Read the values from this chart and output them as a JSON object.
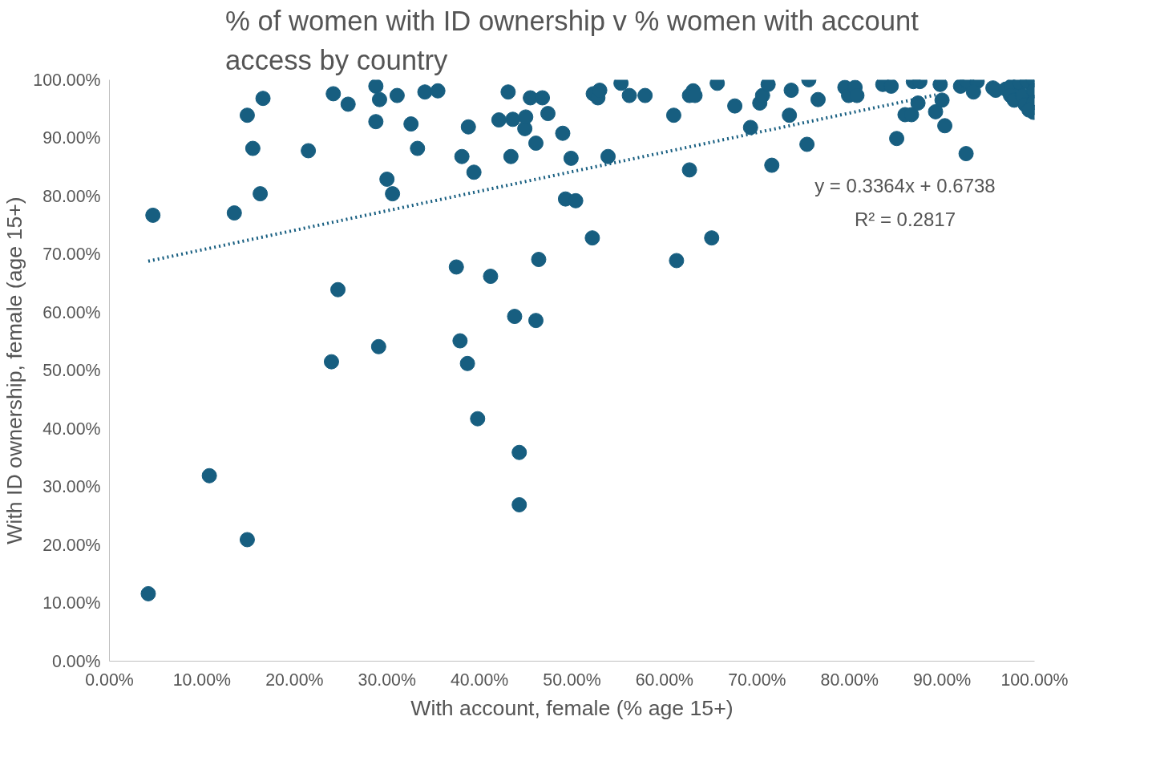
{
  "chart_data": {
    "type": "scatter",
    "title": "% of women with ID ownership v % women with account access by country",
    "xlabel": "With account, female (% age 15+)",
    "ylabel": "With ID ownership, female (age 15+)",
    "xlim": [
      0,
      1
    ],
    "ylim": [
      0,
      1
    ],
    "xticks": [
      {
        "value": 0,
        "label": "0.00%"
      },
      {
        "value": 0.1,
        "label": "10.00%"
      },
      {
        "value": 0.2,
        "label": "20.00%"
      },
      {
        "value": 0.3,
        "label": "30.00%"
      },
      {
        "value": 0.4,
        "label": "40.00%"
      },
      {
        "value": 0.5,
        "label": "50.00%"
      },
      {
        "value": 0.6,
        "label": "60.00%"
      },
      {
        "value": 0.7,
        "label": "70.00%"
      },
      {
        "value": 0.8,
        "label": "80.00%"
      },
      {
        "value": 0.9,
        "label": "90.00%"
      },
      {
        "value": 1,
        "label": "100.00%"
      }
    ],
    "yticks": [
      {
        "value": 0,
        "label": "0.00%"
      },
      {
        "value": 0.1,
        "label": "10.00%"
      },
      {
        "value": 0.2,
        "label": "20.00%"
      },
      {
        "value": 0.3,
        "label": "30.00%"
      },
      {
        "value": 0.4,
        "label": "40.00%"
      },
      {
        "value": 0.5,
        "label": "50.00%"
      },
      {
        "value": 0.6,
        "label": "60.00%"
      },
      {
        "value": 0.7,
        "label": "70.00%"
      },
      {
        "value": 0.8,
        "label": "80.00%"
      },
      {
        "value": 0.9,
        "label": "90.00%"
      },
      {
        "value": 1,
        "label": "100.00%"
      }
    ],
    "grid": false,
    "annotations": [
      "y = 0.3364x + 0.6738",
      "R² = 0.2817"
    ],
    "series": [
      {
        "color": "#175e80",
        "marker": "circle",
        "x": [
          0.047,
          0.042,
          0.108,
          0.135,
          0.149,
          0.149,
          0.155,
          0.163,
          0.166,
          0.215,
          0.24,
          0.242,
          0.247,
          0.258,
          0.288,
          0.288,
          0.291,
          0.292,
          0.3,
          0.306,
          0.311,
          0.326,
          0.333,
          0.341,
          0.355,
          0.375,
          0.379,
          0.381,
          0.387,
          0.388,
          0.394,
          0.398,
          0.412,
          0.421,
          0.431,
          0.434,
          0.436,
          0.438,
          0.443,
          0.443,
          0.449,
          0.45,
          0.455,
          0.461,
          0.461,
          0.464,
          0.468,
          0.474,
          0.49,
          0.493,
          0.499,
          0.504,
          0.522,
          0.523,
          0.528,
          0.53,
          0.539,
          0.553,
          0.562,
          0.579,
          0.61,
          0.613,
          0.627,
          0.627,
          0.631,
          0.633,
          0.651,
          0.657,
          0.676,
          0.693,
          0.703,
          0.706,
          0.712,
          0.716,
          0.735,
          0.737,
          0.754,
          0.756,
          0.766,
          0.795,
          0.799,
          0.806,
          0.808,
          0.836,
          0.845,
          0.851,
          0.86,
          0.867,
          0.869,
          0.874,
          0.876,
          0.893,
          0.898,
          0.9,
          0.903,
          0.926,
          0.92,
          0.927,
          0.938,
          0.934,
          0.955,
          0.958,
          0.969,
          0.975,
          0.974,
          0.978,
          0.984,
          0.987,
          0.99,
          0.992,
          0.999,
          0.999,
          0.999,
          0.999,
          0.994
        ],
        "values": [
          0.767,
          0.116,
          0.319,
          0.771,
          0.209,
          0.939,
          0.882,
          0.804,
          0.968,
          0.878,
          0.515,
          0.976,
          0.639,
          0.958,
          0.989,
          0.928,
          0.541,
          0.966,
          0.829,
          0.804,
          0.973,
          0.924,
          0.882,
          0.979,
          0.981,
          0.678,
          0.551,
          0.868,
          0.512,
          0.919,
          0.841,
          0.417,
          0.662,
          0.931,
          0.979,
          0.868,
          0.932,
          0.593,
          0.359,
          0.269,
          0.916,
          0.936,
          0.969,
          0.586,
          0.891,
          0.691,
          0.969,
          0.942,
          0.908,
          0.795,
          0.865,
          0.792,
          0.728,
          0.976,
          0.969,
          0.982,
          0.868,
          0.994,
          0.973,
          0.973,
          0.939,
          0.689,
          0.845,
          0.973,
          0.981,
          0.973,
          0.728,
          0.994,
          0.955,
          0.918,
          0.96,
          0.973,
          0.992,
          0.853,
          0.939,
          0.982,
          0.889,
          1.0,
          0.966,
          0.987,
          0.973,
          0.987,
          0.973,
          0.992,
          0.989,
          0.899,
          0.94,
          0.94,
          0.997,
          0.96,
          0.997,
          0.945,
          0.992,
          0.965,
          0.921,
          0.873,
          0.989,
          0.997,
          0.997,
          0.979,
          0.986,
          0.982,
          0.984,
          0.989,
          0.973,
          0.965,
          0.994,
          0.973,
          0.957,
          0.997,
          1.0,
          0.981,
          0.961,
          0.944,
          0.948
        ]
      },
      {
        "type": "line",
        "color": "#175e80",
        "line_style": "dotted",
        "marker": "none",
        "x": [
          0.042,
          0.893
        ],
        "values": [
          0.688,
          0.974
        ]
      }
    ]
  }
}
